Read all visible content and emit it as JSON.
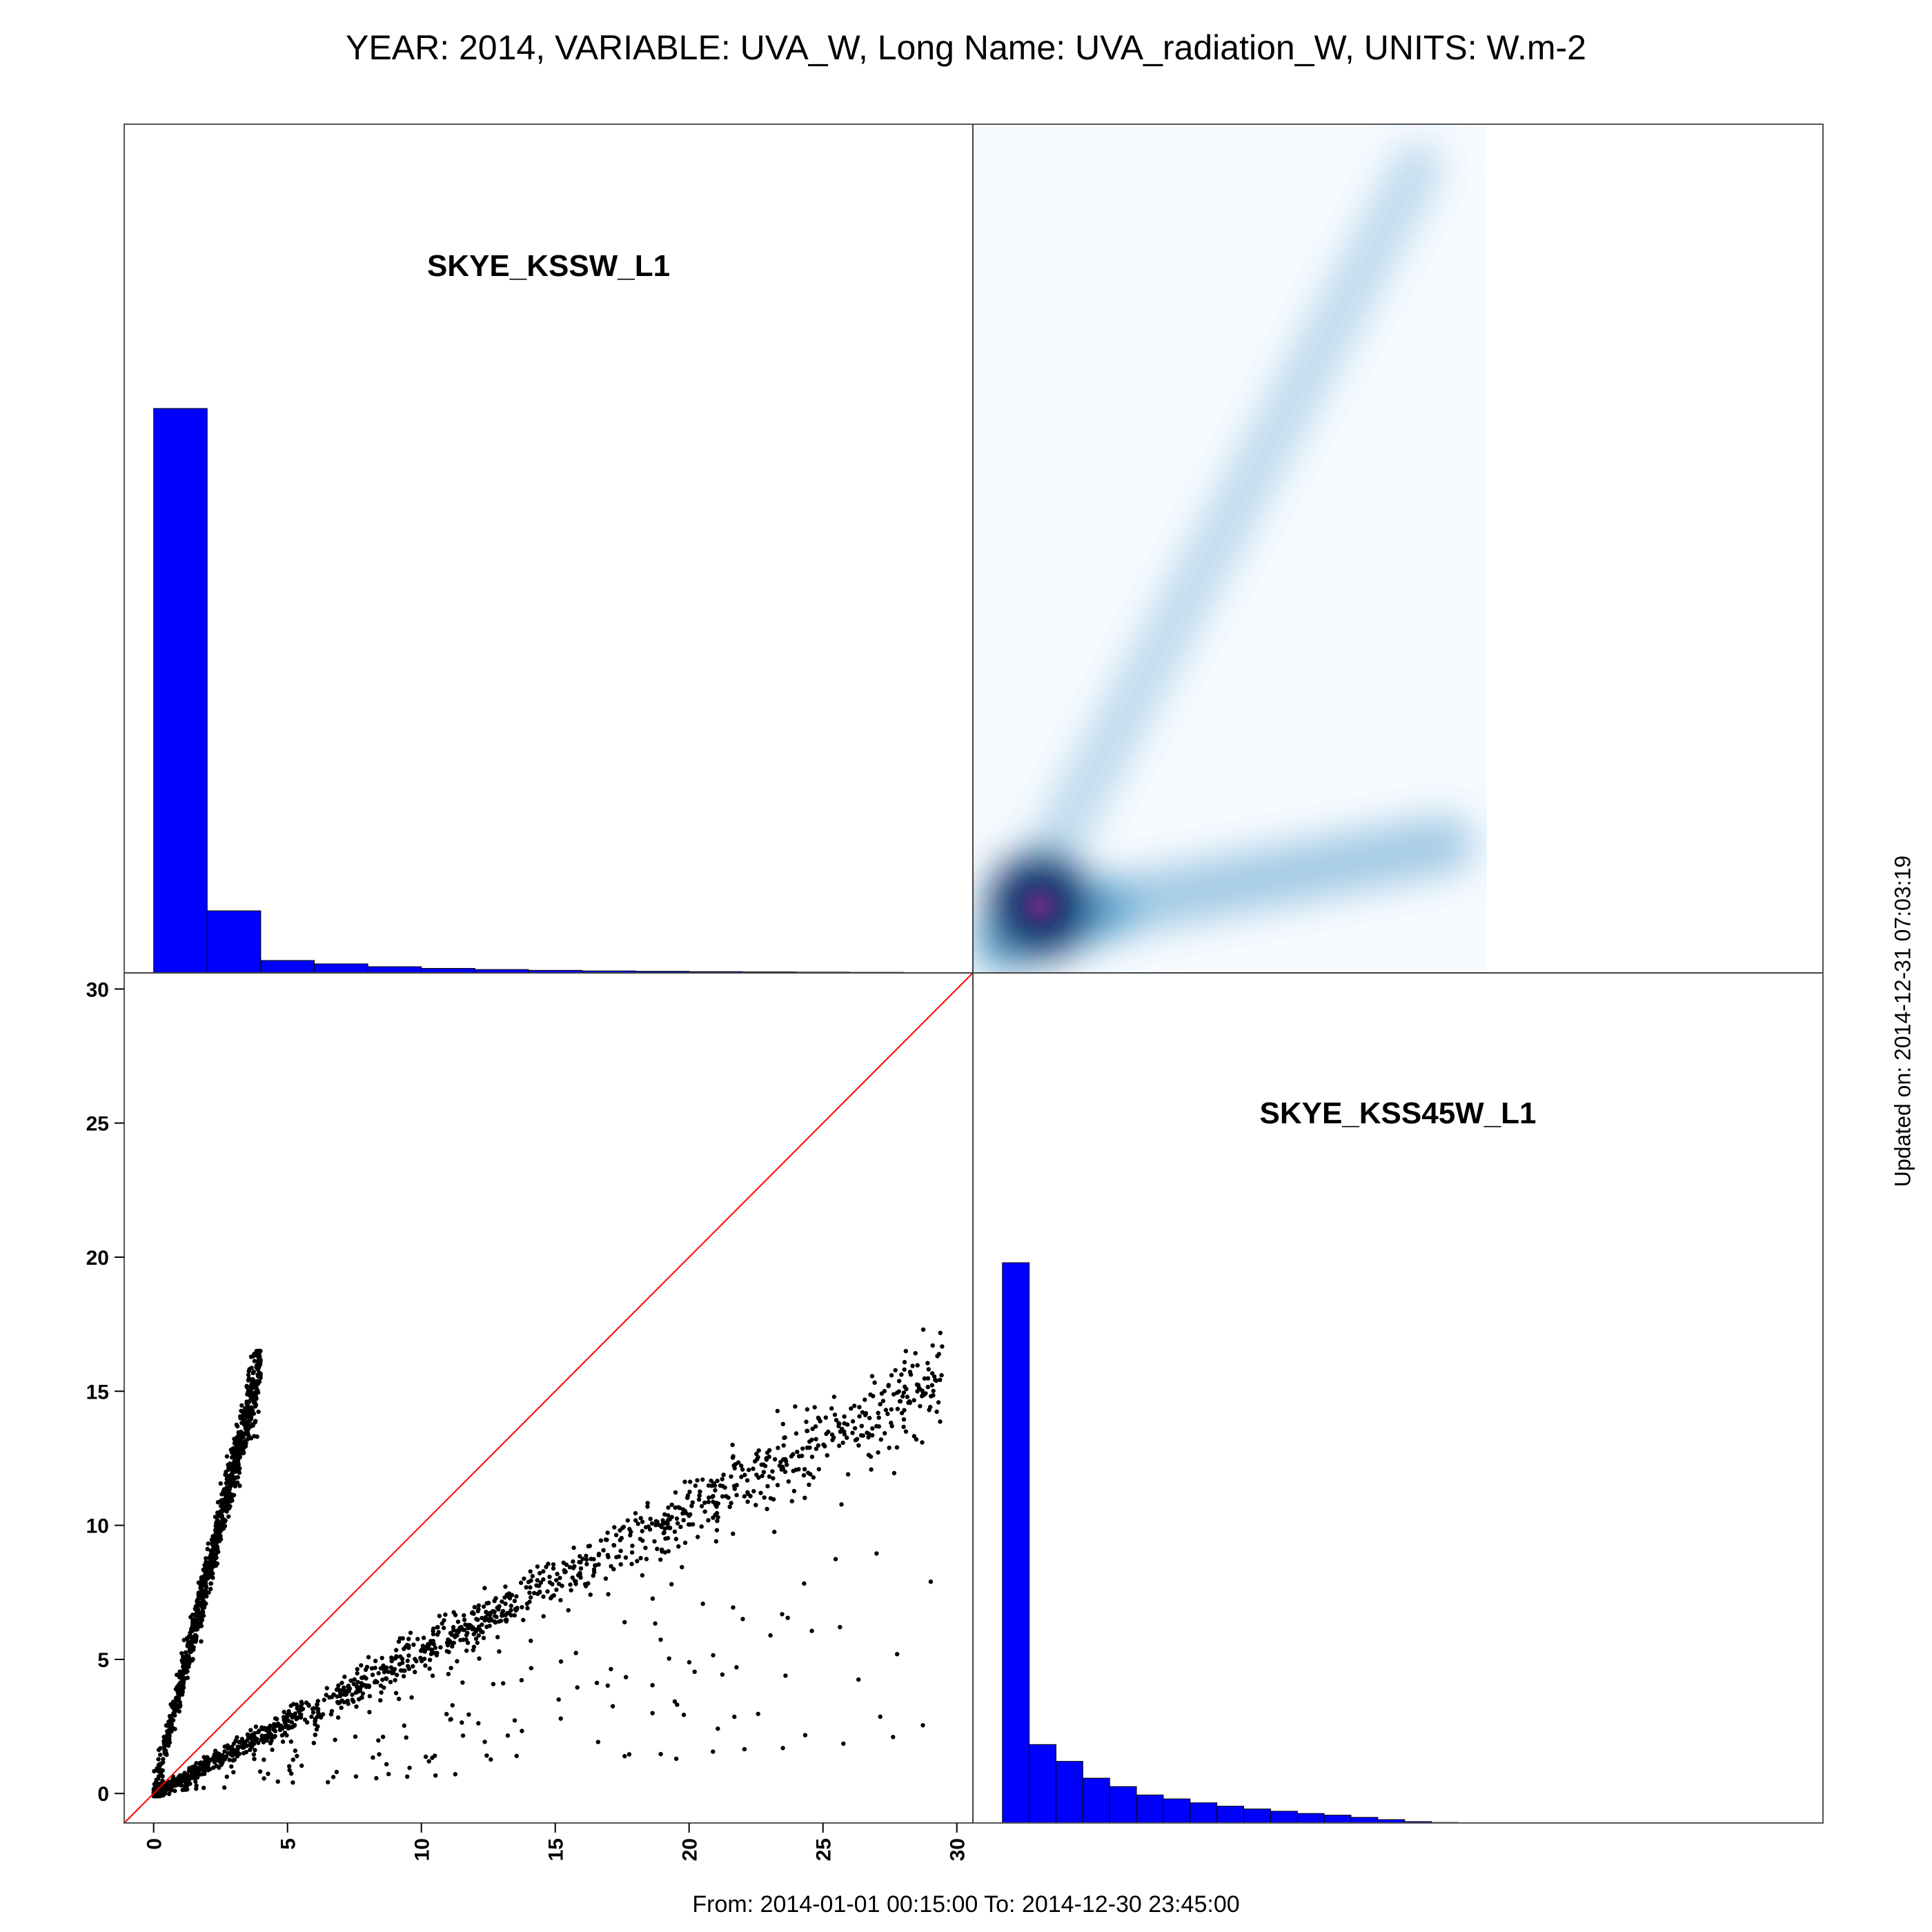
{
  "header": {
    "title": "YEAR: 2014, VARIABLE: UVA_W, Long Name: UVA_radiation_W, UNITS: W.m-2"
  },
  "footer": {
    "range": "From: 2014-01-01 00:15:00 To: 2014-12-30 23:45:00",
    "updated": "Updated on: 2014-12-31 07:03:19"
  },
  "colors": {
    "hist_fill": "#0000ff",
    "identity_line": "#ff0000",
    "density_low": "#f7fbff",
    "density_mid": "#4a98c9",
    "density_high": "#08306b",
    "density_peak": "#7a2f8a"
  },
  "chart_data": [
    {
      "type": "histogram",
      "panel": "top-left",
      "label": "SKYE_KSSW_L1",
      "bin_edges": [
        0,
        2,
        4,
        6,
        8,
        10,
        12,
        14,
        16,
        18,
        20,
        22,
        24,
        26,
        28
      ],
      "values": [
        100,
        11,
        2.2,
        1.6,
        1.1,
        0.8,
        0.6,
        0.45,
        0.35,
        0.28,
        0.22,
        0.17,
        0.13,
        0.1
      ],
      "xlim": [
        -1.1,
        30.6
      ]
    },
    {
      "type": "heatmap",
      "panel": "top-right",
      "description_of_axes": "x: SKYE_KSS45W_L1, y: SKYE_KSSW_L1",
      "xlim": [
        -1.1,
        30.6
      ],
      "ylim": [
        -1.1,
        30.6
      ],
      "ridges": [
        {
          "from": [
            0,
            0
          ],
          "to": [
            15.5,
            29
          ],
          "weight": 0.35
        },
        {
          "from": [
            0,
            0
          ],
          "to": [
            3.8,
            1.3
          ],
          "weight": 0.8
        },
        {
          "from": [
            3.8,
            1.3
          ],
          "to": [
            16.5,
            3.7
          ],
          "weight": 0.5
        }
      ],
      "peak": [
        1.4,
        1.4
      ]
    },
    {
      "type": "scatter",
      "panel": "bottom-left",
      "xlim": [
        -1.1,
        30.6
      ],
      "ylim": [
        -1.1,
        30.6
      ],
      "x_ticks": [
        0,
        5,
        10,
        15,
        20,
        25,
        30
      ],
      "y_ticks": [
        0,
        5,
        10,
        15,
        20,
        25,
        30
      ],
      "reference_line": "y = x",
      "clusters": [
        {
          "name_hidden": true,
          "x_from": 0,
          "x_to": 4,
          "slope": 4.05,
          "spread": 0.35,
          "count": 900
        },
        {
          "name_hidden": true,
          "x_from": 0,
          "x_to": 29.5,
          "slope": 0.53,
          "spread": 0.45,
          "count": 1400
        }
      ],
      "y_max_observed": 16.5,
      "x_max_observed": 29.5
    },
    {
      "type": "histogram",
      "panel": "bottom-right",
      "label": "SKYE_KSS45W_L1",
      "bin_edges": [
        0,
        1,
        2,
        3,
        4,
        5,
        6,
        7,
        8,
        9,
        10,
        11,
        12,
        13,
        14,
        15,
        16,
        17
      ],
      "values": [
        100,
        14,
        11,
        8,
        6.5,
        5,
        4.3,
        3.6,
        3,
        2.5,
        2.1,
        1.7,
        1.4,
        1,
        0.6,
        0.25,
        0.1
      ],
      "xlim": [
        -1.1,
        30.6
      ]
    }
  ]
}
